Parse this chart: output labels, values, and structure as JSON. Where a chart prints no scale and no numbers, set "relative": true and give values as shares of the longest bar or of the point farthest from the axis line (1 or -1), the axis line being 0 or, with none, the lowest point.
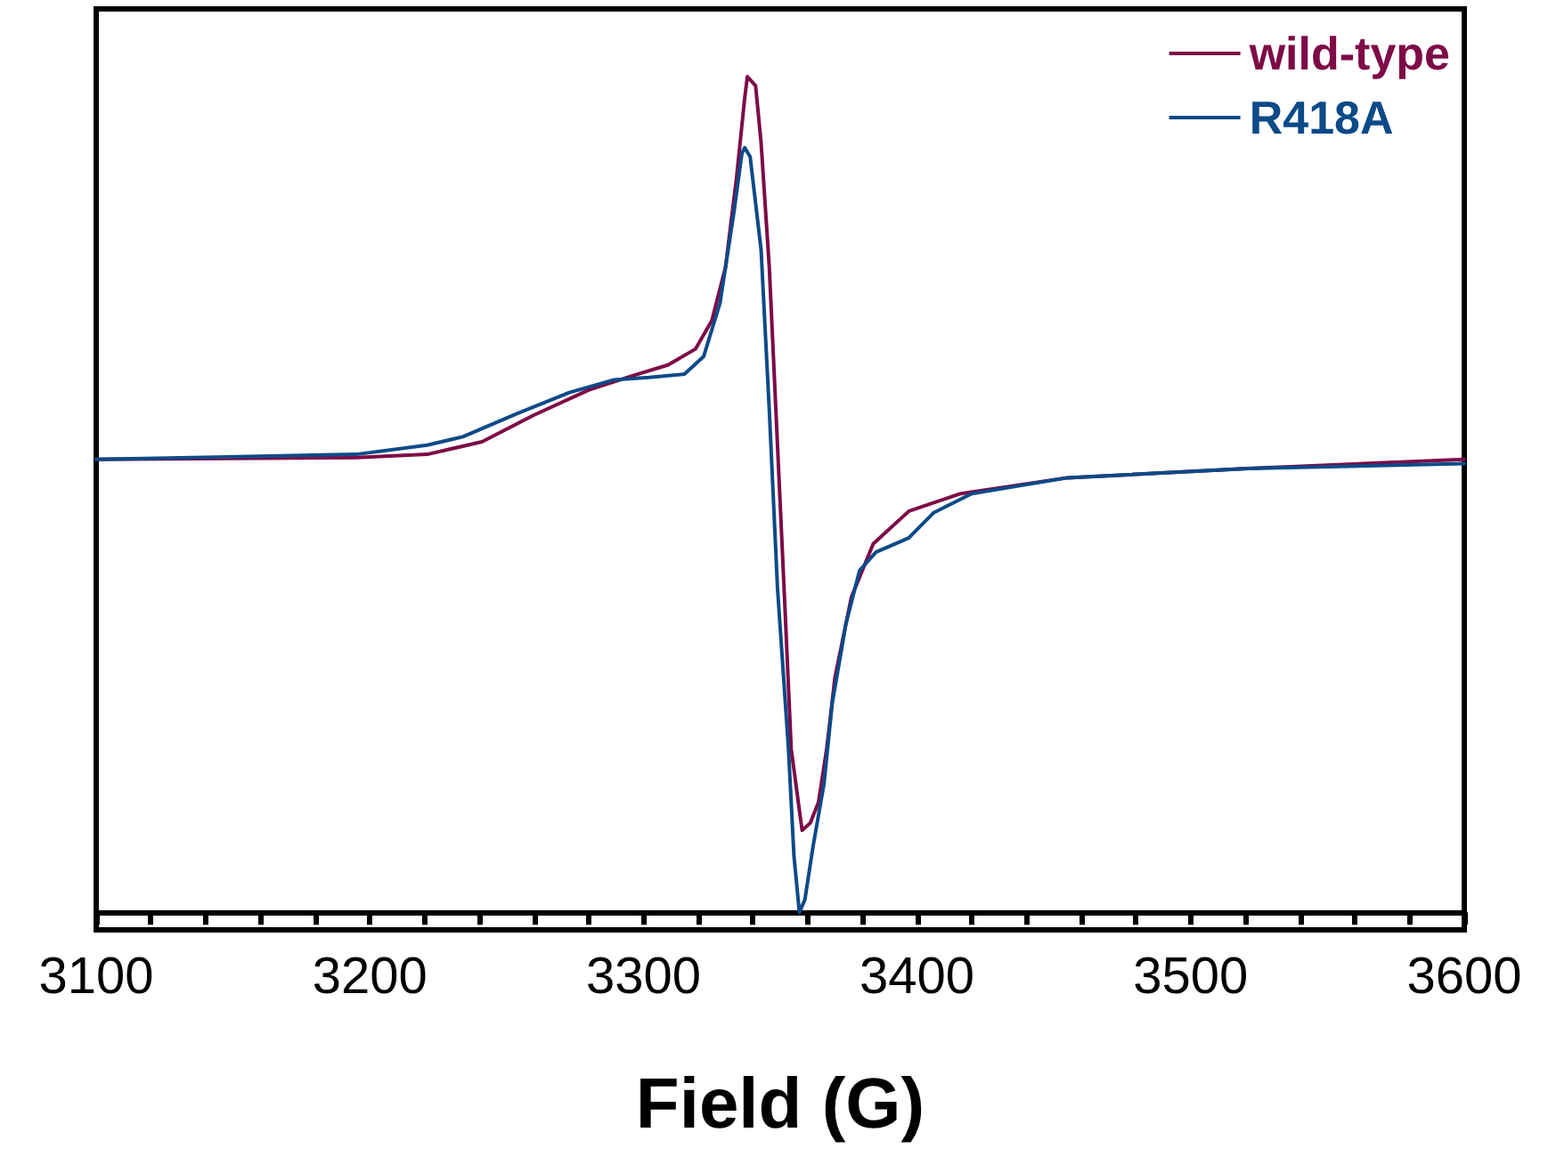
{
  "chart_data": {
    "type": "line",
    "xlabel": "Field (G)",
    "relative": true,
    "legend": "top right",
    "marker": "none",
    "line_style": "solid",
    "grid": false,
    "xlim": [
      3100,
      3600
    ],
    "xticks": [
      3100,
      {
        "value": 3120,
        "label": null
      },
      {
        "value": 3140,
        "label": null
      },
      {
        "value": 3160,
        "label": null
      },
      {
        "value": 3180,
        "label": null
      },
      3200,
      {
        "value": 3220,
        "label": null
      },
      {
        "value": 3240,
        "label": null
      },
      {
        "value": 3260,
        "label": null
      },
      {
        "value": 3280,
        "label": null
      },
      3300,
      {
        "value": 3320,
        "label": null
      },
      {
        "value": 3340,
        "label": null
      },
      {
        "value": 3360,
        "label": null
      },
      {
        "value": 3380,
        "label": null
      },
      3400,
      {
        "value": 3420,
        "label": null
      },
      {
        "value": 3440,
        "label": null
      },
      {
        "value": 3460,
        "label": null
      },
      {
        "value": 3480,
        "label": null
      },
      3500,
      {
        "value": 3520,
        "label": null
      },
      {
        "value": 3540,
        "label": null
      },
      {
        "value": 3560,
        "label": null
      },
      {
        "value": 3580,
        "label": null
      },
      3600
    ],
    "series": [
      {
        "name": "wild-type",
        "color": "#7d0b47",
        "x": [
          3100,
          3195,
          3221,
          3241,
          3260,
          3280,
          3296,
          3309,
          3319,
          3325,
          3330,
          3334,
          3337,
          3338,
          3341,
          3343,
          3346,
          3349,
          3352,
          3354,
          3357,
          3358,
          3361,
          3364,
          3367,
          3370,
          3376,
          3384,
          3397,
          3416,
          3455,
          3521,
          3600
        ],
        "values": [
          0.542,
          0.544,
          0.548,
          0.563,
          0.595,
          0.625,
          0.642,
          0.655,
          0.674,
          0.708,
          0.772,
          0.878,
          0.974,
          1.0,
          0.989,
          0.921,
          0.772,
          0.559,
          0.345,
          0.196,
          0.122,
          0.098,
          0.107,
          0.132,
          0.196,
          0.281,
          0.377,
          0.441,
          0.48,
          0.501,
          0.52,
          0.531,
          0.542
        ]
      },
      {
        "name": "R418A",
        "color": "#0c4a88",
        "x": [
          3100,
          3195,
          3221,
          3234,
          3254,
          3273,
          3289,
          3302,
          3315,
          3322,
          3328,
          3333,
          3336,
          3337,
          3339,
          3343,
          3346,
          3349,
          3353,
          3355,
          3357,
          3359,
          3362,
          3366,
          3369,
          3374,
          3379,
          3385,
          3397,
          3406,
          3420,
          3455,
          3521,
          3600
        ],
        "values": [
          0.542,
          0.548,
          0.559,
          0.569,
          0.597,
          0.622,
          0.637,
          0.64,
          0.644,
          0.665,
          0.729,
          0.836,
          0.908,
          0.915,
          0.904,
          0.793,
          0.601,
          0.388,
          0.196,
          0.068,
          0,
          0.015,
          0.079,
          0.154,
          0.25,
          0.345,
          0.409,
          0.431,
          0.448,
          0.478,
          0.501,
          0.52,
          0.531,
          0.537
        ]
      }
    ]
  }
}
